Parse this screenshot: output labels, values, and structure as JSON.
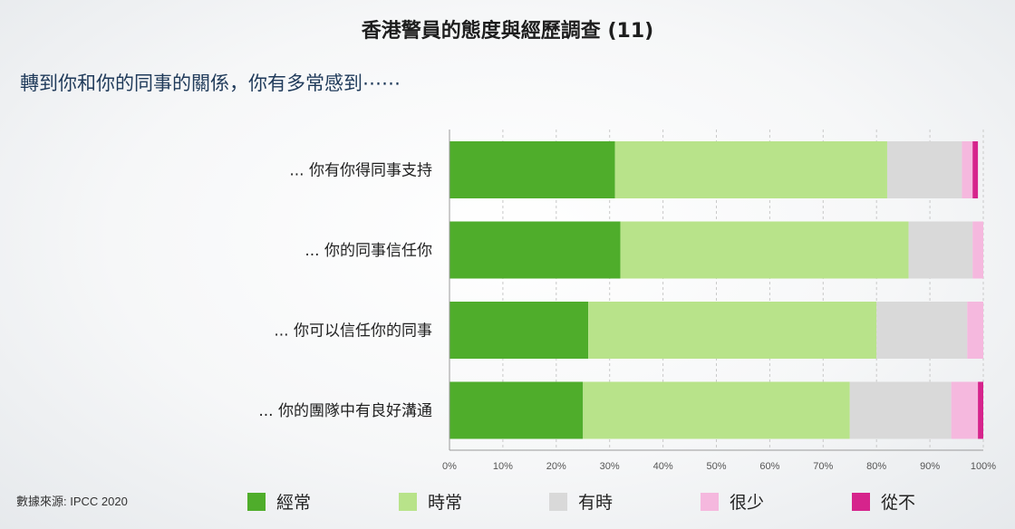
{
  "title": "香港警員的態度與經歷調查 (11)",
  "subtitle": "轉到你和你的同事的關係，你有多常感到⋯⋯",
  "source": "數據來源: IPCC 2020",
  "chart_data": {
    "type": "bar",
    "orientation": "horizontal",
    "stacked": true,
    "categories": [
      "... 你有你得同事支持",
      "... 你的同事信任你",
      "... 你可以信任你的同事",
      "... 你的團隊中有良好溝通"
    ],
    "series": [
      {
        "name": "經常",
        "color": "#4fad2b",
        "values": [
          31,
          32,
          26,
          25
        ]
      },
      {
        "name": "時常",
        "color": "#b8e38a",
        "values": [
          51,
          54,
          54,
          50
        ]
      },
      {
        "name": "有時",
        "color": "#d9d9d9",
        "values": [
          14,
          12,
          17,
          19
        ]
      },
      {
        "name": "很少",
        "color": "#f5b8de",
        "values": [
          2,
          2,
          3,
          5
        ]
      },
      {
        "name": "從不",
        "color": "#d6248c",
        "values": [
          1,
          0,
          0,
          1
        ]
      }
    ],
    "xlim": [
      0,
      100
    ],
    "x_ticks": [
      "0%",
      "10%",
      "20%",
      "30%",
      "40%",
      "50%",
      "60%",
      "70%",
      "80%",
      "90%",
      "100%"
    ],
    "grid": true,
    "legend_position": "bottom"
  }
}
